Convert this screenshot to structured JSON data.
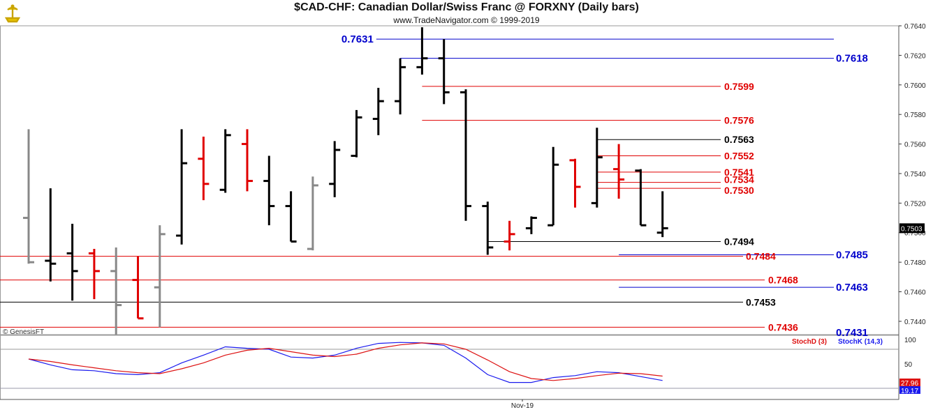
{
  "header": {
    "title": "$CAD-CHF:  Canadian Dollar/Swiss Franc @ FORXNY  (Daily bars)",
    "subtitle": "www.TradeNavigator.com © 1999-2019",
    "copyright": "© GenesisFT"
  },
  "colors": {
    "up": "#000000",
    "down": "#e00000",
    "gray": "#888888",
    "blue": "#0000cc",
    "red": "#e00000",
    "black": "#000000",
    "stochK": "#1a1aee",
    "stochD": "#dd1111"
  },
  "chart_data": [
    {
      "type": "ohlc",
      "ylim": [
        0.7431,
        0.764
      ],
      "yticks": [
        "0.7640",
        "0.7620",
        "0.7600",
        "0.7580",
        "0.7560",
        "0.7540",
        "0.7520",
        "0.7500",
        "0.7480",
        "0.7460",
        "0.7440"
      ],
      "last_price_label": "0.7503",
      "bars": [
        {
          "o": 0.751,
          "h": 0.757,
          "l": 0.7479,
          "c": 0.748,
          "color": "gray"
        },
        {
          "o": 0.7481,
          "h": 0.753,
          "l": 0.7467,
          "c": 0.7479,
          "color": "black"
        },
        {
          "o": 0.7486,
          "h": 0.7506,
          "l": 0.7454,
          "c": 0.7474,
          "color": "black"
        },
        {
          "o": 0.7486,
          "h": 0.7489,
          "l": 0.7455,
          "c": 0.7474,
          "color": "red"
        },
        {
          "o": 0.7474,
          "h": 0.749,
          "l": 0.7431,
          "c": 0.7451,
          "color": "gray"
        },
        {
          "o": 0.7468,
          "h": 0.7484,
          "l": 0.7442,
          "c": 0.7442,
          "color": "red"
        },
        {
          "o": 0.7463,
          "h": 0.7505,
          "l": 0.7436,
          "c": 0.7499,
          "color": "gray"
        },
        {
          "o": 0.7498,
          "h": 0.757,
          "l": 0.7492,
          "c": 0.7547,
          "color": "black"
        },
        {
          "o": 0.755,
          "h": 0.7565,
          "l": 0.7522,
          "c": 0.7533,
          "color": "red"
        },
        {
          "o": 0.7529,
          "h": 0.757,
          "l": 0.7527,
          "c": 0.7566,
          "color": "black"
        },
        {
          "o": 0.756,
          "h": 0.757,
          "l": 0.7528,
          "c": 0.7535,
          "color": "red"
        },
        {
          "o": 0.7535,
          "h": 0.7552,
          "l": 0.7505,
          "c": 0.7518,
          "color": "black"
        },
        {
          "o": 0.7518,
          "h": 0.7528,
          "l": 0.7494,
          "c": 0.7494,
          "color": "black"
        },
        {
          "o": 0.7489,
          "h": 0.7538,
          "l": 0.7488,
          "c": 0.7532,
          "color": "gray"
        },
        {
          "o": 0.7533,
          "h": 0.7562,
          "l": 0.7524,
          "c": 0.7556,
          "color": "black"
        },
        {
          "o": 0.7552,
          "h": 0.7583,
          "l": 0.7551,
          "c": 0.7578,
          "color": "black"
        },
        {
          "o": 0.7577,
          "h": 0.7598,
          "l": 0.7566,
          "c": 0.7589,
          "color": "black"
        },
        {
          "o": 0.7589,
          "h": 0.7618,
          "l": 0.758,
          "c": 0.7612,
          "color": "black"
        },
        {
          "o": 0.7612,
          "h": 0.7639,
          "l": 0.7607,
          "c": 0.7618,
          "color": "black"
        },
        {
          "o": 0.7618,
          "h": 0.7631,
          "l": 0.7587,
          "c": 0.7595,
          "color": "black"
        },
        {
          "o": 0.7595,
          "h": 0.7597,
          "l": 0.7508,
          "c": 0.7518,
          "color": "black"
        },
        {
          "o": 0.7518,
          "h": 0.7521,
          "l": 0.7485,
          "c": 0.749,
          "color": "black"
        },
        {
          "o": 0.7494,
          "h": 0.7508,
          "l": 0.7488,
          "c": 0.7499,
          "color": "red"
        },
        {
          "o": 0.7503,
          "h": 0.7511,
          "l": 0.7499,
          "c": 0.751,
          "color": "black"
        },
        {
          "o": 0.7505,
          "h": 0.7558,
          "l": 0.7505,
          "c": 0.7546,
          "color": "black"
        },
        {
          "o": 0.7549,
          "h": 0.755,
          "l": 0.7517,
          "c": 0.7531,
          "color": "red"
        },
        {
          "o": 0.752,
          "h": 0.7571,
          "l": 0.7517,
          "c": 0.7551,
          "color": "black"
        },
        {
          "o": 0.7543,
          "h": 0.756,
          "l": 0.7523,
          "c": 0.7536,
          "color": "red"
        },
        {
          "o": 0.7542,
          "h": 0.7543,
          "l": 0.7505,
          "c": 0.7505,
          "color": "black"
        },
        {
          "o": 0.75,
          "h": 0.7528,
          "l": 0.7497,
          "c": 0.7503,
          "color": "black"
        }
      ],
      "levels": [
        {
          "value": 0.7631,
          "label": "0.7631",
          "color": "blue",
          "from_bar": 16,
          "label_side": "left",
          "bold": true
        },
        {
          "value": 0.7618,
          "label": "0.7618",
          "color": "blue",
          "from_bar": 17,
          "label_side": "right",
          "bold": true
        },
        {
          "value": 0.7599,
          "label": "0.7599",
          "color": "red",
          "from_bar": 18,
          "label_side": "right"
        },
        {
          "value": 0.7576,
          "label": "0.7576",
          "color": "red",
          "from_bar": 18,
          "label_side": "right"
        },
        {
          "value": 0.7563,
          "label": "0.7563",
          "color": "black",
          "from_bar": 26,
          "label_side": "right"
        },
        {
          "value": 0.7552,
          "label": "0.7552",
          "color": "red",
          "from_bar": 26,
          "label_side": "right"
        },
        {
          "value": 0.7541,
          "label": "0.7541",
          "color": "red",
          "from_bar": 26,
          "label_side": "right"
        },
        {
          "value": 0.7534,
          "label": "0.7534",
          "color": "red",
          "from_bar": 26,
          "label_side": "right"
        },
        {
          "value": 0.753,
          "label": "0.7530",
          "color": "red",
          "from_bar": 26,
          "label_side": "right"
        },
        {
          "value": 0.7494,
          "label": "0.7494",
          "color": "black",
          "from_bar": 21,
          "label_side": "right"
        },
        {
          "value": 0.7485,
          "label": "0.7485",
          "color": "blue",
          "from_bar": 27,
          "label_side": "far",
          "bold": true
        },
        {
          "value": 0.7484,
          "label": "0.7484",
          "color": "red",
          "from_bar": 0,
          "label_side": "right"
        },
        {
          "value": 0.7468,
          "label": "0.7468",
          "color": "red",
          "from_bar": 0,
          "label_side": "right"
        },
        {
          "value": 0.7463,
          "label": "0.7463",
          "color": "blue",
          "from_bar": 27,
          "label_side": "far",
          "bold": true
        },
        {
          "value": 0.7453,
          "label": "0.7453",
          "color": "black",
          "from_bar": 0,
          "label_side": "right"
        },
        {
          "value": 0.7436,
          "label": "0.7436",
          "color": "red",
          "from_bar": 0,
          "label_side": "right"
        },
        {
          "value": 0.7431,
          "label": "0.7431",
          "color": "blue",
          "from_bar": 27,
          "label_side": "far",
          "bold": true
        }
      ]
    },
    {
      "type": "line",
      "legend": [
        "StochD (3)",
        "StochK (14,3)"
      ],
      "ylim": [
        0,
        100
      ],
      "yticks": [
        "100",
        "50"
      ],
      "last_labels": [
        "27.96",
        "19.17"
      ],
      "x_tick_label": "Nov-19",
      "series": [
        {
          "name": "StochK (14,3)",
          "color": "stochK",
          "values": [
            60,
            48,
            38,
            36,
            30,
            28,
            32,
            52,
            68,
            85,
            82,
            80,
            64,
            62,
            68,
            82,
            92,
            94,
            93,
            88,
            62,
            28,
            12,
            12,
            22,
            26,
            34,
            32,
            24,
            16
          ]
        },
        {
          "name": "StochD (3)",
          "color": "stochD",
          "values": [
            60,
            55,
            48,
            42,
            36,
            32,
            30,
            40,
            52,
            68,
            78,
            82,
            75,
            68,
            65,
            70,
            82,
            89,
            93,
            91,
            80,
            58,
            34,
            20,
            16,
            20,
            26,
            31,
            30,
            25
          ]
        }
      ]
    }
  ]
}
